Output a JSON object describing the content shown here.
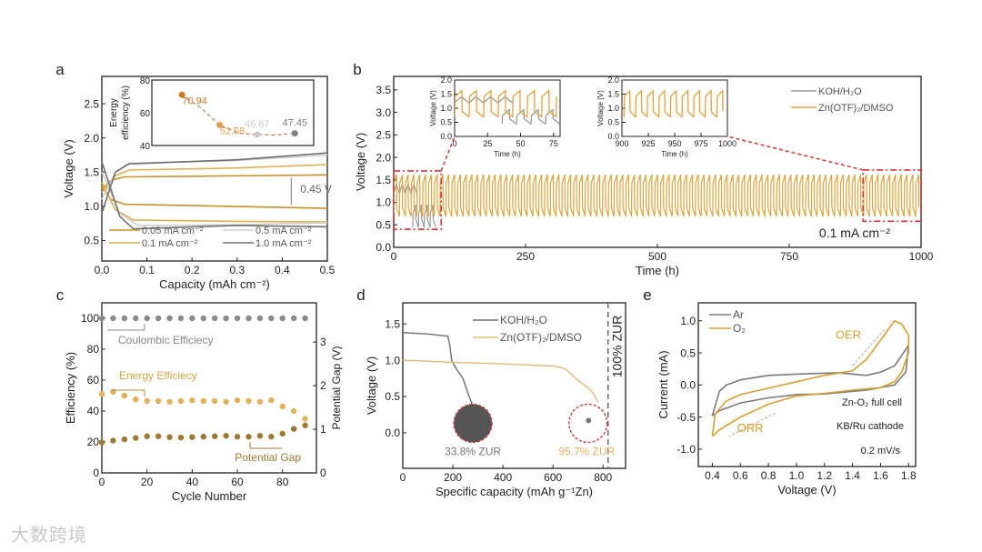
{
  "figure": {
    "watermark": "大数跨境"
  },
  "chart_data": [
    {
      "id": "a",
      "panel_label": "a",
      "type": "line",
      "xlabel": "Capacity (mAh cm⁻²)",
      "ylabel": "Voltage (V)",
      "xlim": [
        0,
        0.5
      ],
      "ylim": [
        0.2,
        2.9
      ],
      "xticks": [
        0.0,
        0.1,
        0.2,
        0.3,
        0.4,
        0.5
      ],
      "xtick_labels": [
        "0.0",
        "0.1",
        "0.2",
        "0.3",
        "0.4",
        "0.5"
      ],
      "yticks": [
        0.5,
        1.0,
        1.5,
        2.0,
        2.5
      ],
      "ytick_labels": [
        "0.5",
        "1.0",
        "1.5",
        "2.0",
        "2.5"
      ],
      "annotations": [
        "0.45 V"
      ],
      "series": [
        {
          "name": "0.05 mA cm⁻²",
          "color": "#c8902a",
          "curves": [
            [
              [
                0,
                1.25
              ],
              [
                0.02,
                1.38
              ],
              [
                0.05,
                1.43
              ],
              [
                0.2,
                1.44
              ],
              [
                0.5,
                1.46
              ]
            ],
            [
              [
                0,
                1.3
              ],
              [
                0.02,
                1.1
              ],
              [
                0.05,
                1.03
              ],
              [
                0.2,
                1.01
              ],
              [
                0.5,
                0.97
              ]
            ]
          ]
        },
        {
          "name": "0.1 mA cm⁻²",
          "color": "#e0b050",
          "curves": [
            [
              [
                0,
                1.2
              ],
              [
                0.03,
                1.45
              ],
              [
                0.06,
                1.53
              ],
              [
                0.3,
                1.56
              ],
              [
                0.5,
                1.61
              ]
            ],
            [
              [
                0,
                1.35
              ],
              [
                0.03,
                0.95
              ],
              [
                0.07,
                0.8
              ],
              [
                0.3,
                0.78
              ],
              [
                0.5,
                0.77
              ]
            ]
          ]
        },
        {
          "name": "0.5 mA cm⁻²",
          "color": "#cfcfcf",
          "curves": [
            [
              [
                0,
                1.1
              ],
              [
                0.03,
                1.5
              ],
              [
                0.06,
                1.63
              ],
              [
                0.3,
                1.67
              ],
              [
                0.5,
                1.75
              ]
            ],
            [
              [
                0,
                1.5
              ],
              [
                0.04,
                0.9
              ],
              [
                0.08,
                0.72
              ],
              [
                0.3,
                0.73
              ],
              [
                0.5,
                0.76
              ]
            ]
          ]
        },
        {
          "name": "1.0 mA cm⁻²",
          "color": "#707070",
          "curves": [
            [
              [
                0,
                0.9
              ],
              [
                0.03,
                1.5
              ],
              [
                0.06,
                1.62
              ],
              [
                0.3,
                1.68
              ],
              [
                0.5,
                1.78
              ]
            ],
            [
              [
                0,
                1.65
              ],
              [
                0.04,
                0.85
              ],
              [
                0.07,
                0.67
              ],
              [
                0.3,
                0.72
              ],
              [
                0.5,
                0.7
              ]
            ]
          ]
        }
      ],
      "inset": {
        "ylabel": "Energy efficiency (%)",
        "ylim": [
          40,
          80
        ],
        "yticks": [
          40,
          60,
          80
        ],
        "ytick_labels": [
          "40",
          "60",
          "80"
        ],
        "points": [
          {
            "label": "70.94",
            "value": 70.94,
            "color": "#d07a20"
          },
          {
            "label": "52.58",
            "value": 52.58,
            "color": "#e0a050"
          },
          {
            "label": "46.67",
            "value": 46.67,
            "color": "#c8c8c8"
          },
          {
            "label": "47.45",
            "value": 47.45,
            "color": "#808080"
          }
        ]
      }
    },
    {
      "id": "b",
      "panel_label": "b",
      "type": "line",
      "xlabel": "Time (h)",
      "ylabel": "Voltage (V)",
      "xlim": [
        0,
        1000
      ],
      "ylim": [
        0,
        3.8
      ],
      "xticks": [
        0,
        250,
        500,
        750,
        1000
      ],
      "xtick_labels": [
        "0",
        "250",
        "500",
        "750",
        "1000"
      ],
      "yticks": [
        0,
        0.5,
        1,
        1.5,
        2,
        2.5,
        3,
        3.5
      ],
      "ytick_labels": [
        "0.0",
        "0.5",
        "1.0",
        "1.5",
        "2.0",
        "2.5",
        "3.0",
        "3.5"
      ],
      "annotations": [
        "0.1 mA cm⁻²"
      ],
      "legend": [
        "KOH/H₂O",
        "Zn(OTF)₂/DMSO"
      ],
      "series": [
        {
          "name": "KOH/H₂O",
          "color": "#9a9a9a",
          "segments": [
            {
              "t": [
                0,
                36
              ],
              "charge_v": 1.42,
              "discharge_v": 1.2,
              "period_h": 11
            },
            {
              "t": [
                36,
                80
              ],
              "charge_v": 0.95,
              "discharge_v": 0.45,
              "period_h": 11
            }
          ]
        },
        {
          "name": "Zn(OTF)₂/DMSO",
          "color": "#e0a43a",
          "segments": [
            {
              "t": [
                0,
                1000
              ],
              "charge_v": 1.62,
              "discharge_v": 0.7,
              "period_h": 11
            }
          ]
        }
      ],
      "insets": [
        {
          "xlabel": "Time (h)",
          "ylabel": "Voltage (V)",
          "xlim": [
            0,
            80
          ],
          "ylim": [
            0,
            2
          ],
          "xticks": [
            0,
            25,
            50,
            75
          ],
          "xtick_labels": [
            "0",
            "25",
            "50",
            "75"
          ],
          "yticks": [
            0,
            0.5,
            1,
            1.5,
            2
          ],
          "ytick_labels": [
            "0.0",
            "0.5",
            "1.0",
            "1.5",
            "2.0"
          ]
        },
        {
          "xlabel": "Time (h)",
          "ylabel": "Voltage (V)",
          "xlim": [
            900,
            1000
          ],
          "ylim": [
            0,
            2
          ],
          "xticks": [
            900,
            925,
            950,
            975,
            1000
          ],
          "xtick_labels": [
            "900",
            "925",
            "950",
            "975",
            "1000"
          ],
          "yticks": [
            0,
            0.5,
            1,
            1.5,
            2
          ],
          "ytick_labels": [
            "0.0",
            "0.5",
            "1.0",
            "1.5",
            "2.0"
          ]
        }
      ]
    },
    {
      "id": "c",
      "panel_label": "c",
      "type": "scatter",
      "xlabel": "Cycle Number",
      "ylabel": "Efficiency (%)",
      "y2label": "Potential Gap (V)",
      "xlim": [
        0,
        95
      ],
      "ylim": [
        0,
        110
      ],
      "y2lim": [
        0,
        3.9
      ],
      "xticks": [
        0,
        20,
        40,
        60,
        80
      ],
      "xtick_labels": [
        "0",
        "20",
        "40",
        "60",
        "80"
      ],
      "yticks": [
        0,
        20,
        40,
        60,
        80,
        100
      ],
      "ytick_labels": [
        "0",
        "20",
        "40",
        "60",
        "80",
        "100"
      ],
      "y2ticks": [
        0,
        1,
        2,
        3
      ],
      "y2tick_labels": [
        "0",
        "1",
        "2",
        "3"
      ],
      "x": [
        0,
        5,
        10,
        15,
        20,
        25,
        30,
        35,
        40,
        45,
        50,
        55,
        60,
        65,
        70,
        75,
        80,
        85,
        90
      ],
      "annotations": [
        "Coulombic Efficiecy",
        "Energy Efficiecy",
        "Potential Gap"
      ],
      "series": [
        {
          "name": "Coulombic Efficiecy",
          "axis": "left",
          "color": "#8a8a8a",
          "values": [
            100,
            100,
            100,
            100,
            100,
            100,
            100,
            100,
            100,
            100,
            100,
            100,
            100,
            100,
            100,
            100,
            100,
            100,
            100
          ]
        },
        {
          "name": "Energy Efficiecy",
          "axis": "left",
          "color": "#e3b15a",
          "values": [
            51,
            52.5,
            50,
            47.5,
            46.5,
            46.5,
            46,
            46.5,
            47,
            46.5,
            46.5,
            46,
            47,
            46.5,
            46,
            47,
            43,
            40,
            35
          ]
        },
        {
          "name": "Potential Gap",
          "axis": "right",
          "color": "#9c7a30",
          "values": [
            0.7,
            0.74,
            0.77,
            0.8,
            0.84,
            0.84,
            0.82,
            0.81,
            0.82,
            0.83,
            0.84,
            0.85,
            0.83,
            0.83,
            0.85,
            0.83,
            0.9,
            1.01,
            1.09
          ]
        }
      ]
    },
    {
      "id": "d",
      "panel_label": "d",
      "type": "line",
      "xlabel": "Specific capacity (mAh g⁻¹Zn)",
      "ylabel": "Voltage (V)",
      "xlim": [
        0,
        890
      ],
      "ylim": [
        -0.49,
        1.79
      ],
      "xticks": [
        0,
        200,
        400,
        600,
        800
      ],
      "xtick_labels": [
        "0",
        "200",
        "400",
        "600",
        "800"
      ],
      "yticks": [
        0,
        0.5,
        1,
        1.5
      ],
      "ytick_labels": [
        "0.0",
        "0.5",
        "1.0",
        "1.5"
      ],
      "reference_line": {
        "x": 820,
        "label": "100% ZUR"
      },
      "annotations": [
        "33.8% ZUR",
        "95.7% ZUR"
      ],
      "legend": [
        "KOH/H₂O",
        "Zn(OTF)₂/DMSO"
      ],
      "series": [
        {
          "name": "KOH/H₂O",
          "color": "#6e6e6e",
          "points": [
            [
              0,
              1.38
            ],
            [
              100,
              1.36
            ],
            [
              180,
              1.33
            ],
            [
              188,
              1.2
            ],
            [
              195,
              1.0
            ],
            [
              210,
              0.9
            ],
            [
              240,
              0.75
            ],
            [
              265,
              0.5
            ],
            [
              280,
              0.37
            ]
          ]
        },
        {
          "name": "Zn(OTF)₂/DMSO",
          "color": "#e6b97a",
          "points": [
            [
              0,
              1.0
            ],
            [
              200,
              0.97
            ],
            [
              400,
              0.95
            ],
            [
              600,
              0.92
            ],
            [
              650,
              0.88
            ],
            [
              700,
              0.72
            ],
            [
              740,
              0.62
            ],
            [
              760,
              0.55
            ],
            [
              780,
              0.42
            ]
          ]
        }
      ]
    },
    {
      "id": "e",
      "panel_label": "e",
      "type": "line",
      "xlabel": "Voltage (V)",
      "ylabel": "Current (mA)",
      "xlim": [
        0.3,
        1.85
      ],
      "ylim": [
        -1.27,
        1.28
      ],
      "xticks": [
        0.4,
        0.6,
        0.8,
        1.0,
        1.2,
        1.4,
        1.6,
        1.8
      ],
      "xtick_labels": [
        "0.4",
        "0.6",
        "0.8",
        "1.0",
        "1.2",
        "1.4",
        "1.6",
        "1.8"
      ],
      "yticks": [
        -1,
        -0.5,
        0,
        0.5,
        1
      ],
      "ytick_labels": [
        "-1.0",
        "-0.5",
        "0.0",
        "0.5",
        "1.0"
      ],
      "annotations": [
        "OER",
        "ORR",
        "Zn-O₂ full cell",
        "KB/Ru cathode",
        "0.2 mV/s"
      ],
      "legend": [
        "Ar",
        "O₂"
      ],
      "series": [
        {
          "name": "Ar",
          "color": "#7a7a7a",
          "points": [
            [
              0.4,
              -0.48
            ],
            [
              0.45,
              -0.1
            ],
            [
              0.5,
              0.0
            ],
            [
              0.6,
              0.08
            ],
            [
              0.8,
              0.15
            ],
            [
              1.0,
              0.17
            ],
            [
              1.3,
              0.19
            ],
            [
              1.5,
              0.15
            ],
            [
              1.6,
              0.2
            ],
            [
              1.7,
              0.3
            ],
            [
              1.8,
              0.62
            ],
            [
              1.78,
              0.2
            ],
            [
              1.7,
              0.0
            ],
            [
              1.5,
              -0.08
            ],
            [
              1.2,
              -0.14
            ],
            [
              1.0,
              -0.15
            ],
            [
              0.8,
              -0.2
            ],
            [
              0.6,
              -0.28
            ],
            [
              0.45,
              -0.4
            ],
            [
              0.4,
              -0.48
            ]
          ]
        },
        {
          "name": "O₂",
          "color": "#d9a030",
          "points": [
            [
              0.4,
              -0.8
            ],
            [
              0.42,
              -0.45
            ],
            [
              0.5,
              -0.25
            ],
            [
              0.6,
              -0.15
            ],
            [
              0.8,
              -0.05
            ],
            [
              1.0,
              0.05
            ],
            [
              1.2,
              0.15
            ],
            [
              1.4,
              0.22
            ],
            [
              1.5,
              0.4
            ],
            [
              1.6,
              0.7
            ],
            [
              1.7,
              1.0
            ],
            [
              1.75,
              0.95
            ],
            [
              1.8,
              0.78
            ],
            [
              1.8,
              0.5
            ],
            [
              1.75,
              0.2
            ],
            [
              1.7,
              0.05
            ],
            [
              1.6,
              -0.04
            ],
            [
              1.4,
              -0.08
            ],
            [
              1.2,
              -0.13
            ],
            [
              1.0,
              -0.17
            ],
            [
              0.8,
              -0.3
            ],
            [
              0.6,
              -0.5
            ],
            [
              0.45,
              -0.7
            ],
            [
              0.4,
              -0.8
            ]
          ]
        }
      ]
    }
  ]
}
